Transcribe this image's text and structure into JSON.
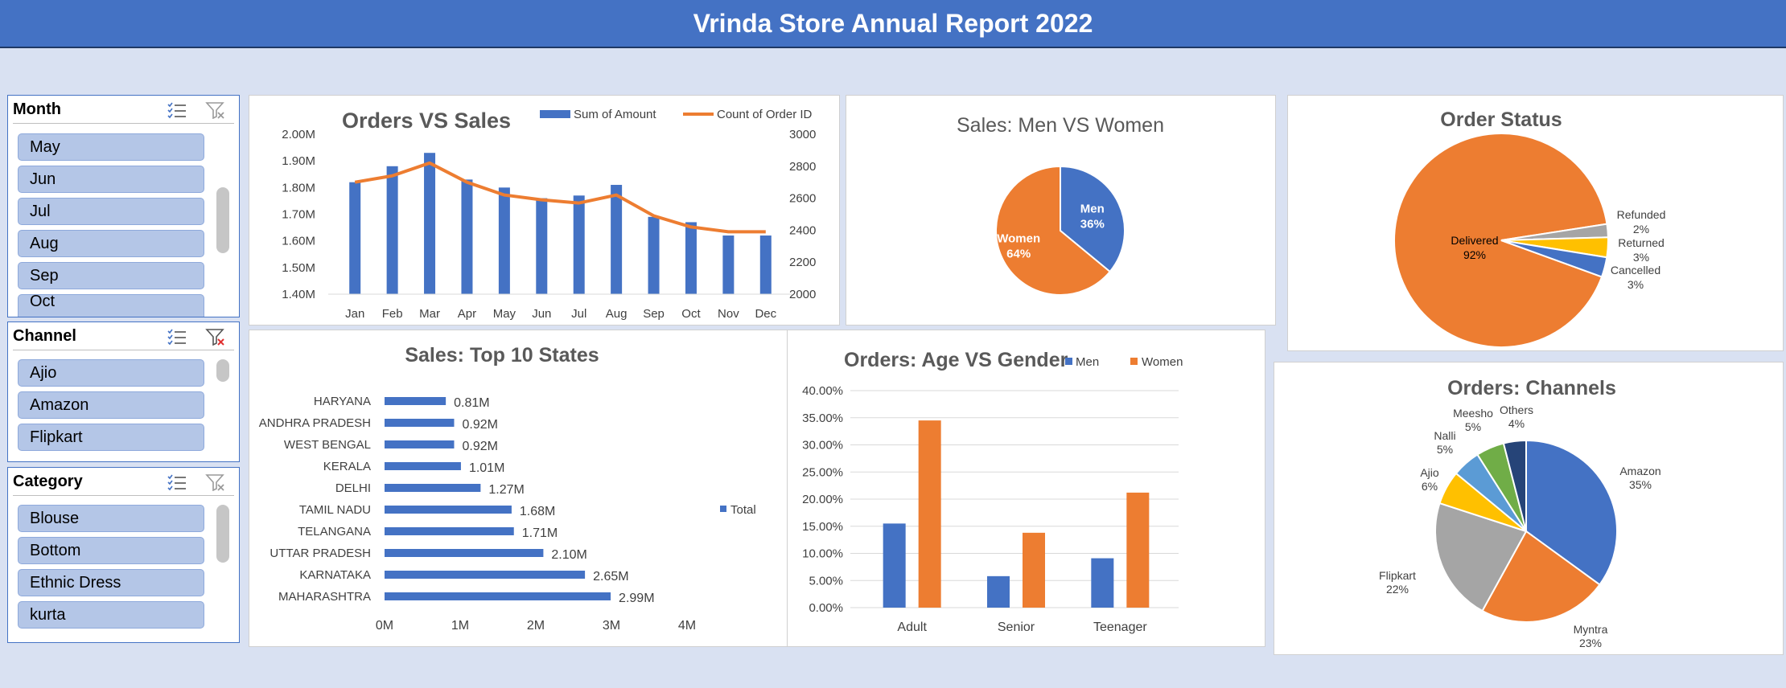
{
  "header": {
    "title": "Vrinda Store Annual Report 2022"
  },
  "colors": {
    "blue": "#4472c4",
    "orange": "#ed7d31",
    "gray": "#a5a5a5",
    "yellow": "#ffc000",
    "lightblue": "#5b9bd5",
    "green": "#70ad47",
    "navy": "#264478"
  },
  "slicers": {
    "month": {
      "title": "Month",
      "items": [
        "May",
        "Jun",
        "Jul",
        "Aug",
        "Sep",
        "Oct"
      ]
    },
    "channel": {
      "title": "Channel",
      "items": [
        "Ajio",
        "Amazon",
        "Flipkart"
      ]
    },
    "category": {
      "title": "Category",
      "items": [
        "Blouse",
        "Bottom",
        "Ethnic Dress",
        "kurta"
      ]
    }
  },
  "chart_data": [
    {
      "id": "orders_vs_sales",
      "type": "bar",
      "title": "Orders VS Sales",
      "categories": [
        "Jan",
        "Feb",
        "Mar",
        "Apr",
        "May",
        "Jun",
        "Jul",
        "Aug",
        "Sep",
        "Oct",
        "Nov",
        "Dec"
      ],
      "series": [
        {
          "name": "Sum of Amount",
          "type": "bar",
          "axis": "left",
          "values": [
            1.82,
            1.88,
            1.93,
            1.83,
            1.8,
            1.76,
            1.77,
            1.81,
            1.69,
            1.67,
            1.62,
            1.62
          ]
        },
        {
          "name": "Count of Order ID",
          "type": "line",
          "axis": "right",
          "values": [
            2700,
            2740,
            2820,
            2700,
            2620,
            2590,
            2570,
            2620,
            2490,
            2420,
            2390,
            2390
          ]
        }
      ],
      "y_left": {
        "ylim": [
          1.4,
          2.0
        ],
        "ticks": [
          "1.40M",
          "1.50M",
          "1.60M",
          "1.70M",
          "1.80M",
          "1.90M",
          "2.00M"
        ]
      },
      "y_right": {
        "ylim": [
          2000,
          3000
        ],
        "ticks": [
          "2000",
          "2200",
          "2400",
          "2600",
          "2800",
          "3000"
        ]
      },
      "legend": "top-right"
    },
    {
      "id": "sales_men_women",
      "type": "pie",
      "title": "Sales: Men VS Women",
      "slices": [
        {
          "label": "Men",
          "value": 36,
          "text": "36%"
        },
        {
          "label": "Women",
          "value": 64,
          "text": "64%"
        }
      ]
    },
    {
      "id": "order_status",
      "type": "pie",
      "title": "Order Status",
      "slices": [
        {
          "label": "Delivered",
          "value": 92,
          "text": "92%"
        },
        {
          "label": "Refunded",
          "value": 2,
          "text": "2%"
        },
        {
          "label": "Returned",
          "value": 3,
          "text": "3%"
        },
        {
          "label": "Cancelled",
          "value": 3,
          "text": "3%"
        }
      ]
    },
    {
      "id": "top_states",
      "type": "bar",
      "orientation": "horizontal",
      "title": "Sales: Top 10 States",
      "categories": [
        "HARYANA",
        "ANDHRA PRADESH",
        "WEST BENGAL",
        "KERALA",
        "DELHI",
        "TAMIL NADU",
        "TELANGANA",
        "UTTAR PRADESH",
        "KARNATAKA",
        "MAHARASHTRA"
      ],
      "values": [
        0.81,
        0.92,
        0.92,
        1.01,
        1.27,
        1.68,
        1.71,
        2.1,
        2.65,
        2.99
      ],
      "data_labels": [
        "0.81M",
        "0.92M",
        "0.92M",
        "1.01M",
        "1.27M",
        "1.68M",
        "1.71M",
        "2.10M",
        "2.65M",
        "2.99M"
      ],
      "xlim": [
        0,
        4
      ],
      "x_ticks": [
        "0M",
        "1M",
        "2M",
        "3M",
        "4M"
      ],
      "legend": {
        "position": "right",
        "label": "Total"
      }
    },
    {
      "id": "age_gender",
      "type": "bar",
      "title": "Orders: Age VS Gender",
      "categories": [
        "Adult",
        "Senior",
        "Teenager"
      ],
      "series": [
        {
          "name": "Men",
          "values": [
            15.5,
            5.8,
            9.1
          ]
        },
        {
          "name": "Women",
          "values": [
            34.5,
            13.8,
            21.2
          ]
        }
      ],
      "ylim": [
        0,
        40
      ],
      "y_ticks": [
        "0.00%",
        "5.00%",
        "10.00%",
        "15.00%",
        "20.00%",
        "25.00%",
        "30.00%",
        "35.00%",
        "40.00%"
      ],
      "legend": "top"
    },
    {
      "id": "channels",
      "type": "pie",
      "title": "Orders: Channels",
      "slices": [
        {
          "label": "Amazon",
          "value": 35,
          "text": "35%"
        },
        {
          "label": "Myntra",
          "value": 23,
          "text": "23%"
        },
        {
          "label": "Flipkart",
          "value": 22,
          "text": "22%"
        },
        {
          "label": "Ajio",
          "value": 6,
          "text": "6%"
        },
        {
          "label": "Nalli",
          "value": 5,
          "text": "5%"
        },
        {
          "label": "Meesho",
          "value": 5,
          "text": "5%"
        },
        {
          "label": "Others",
          "value": 4,
          "text": "4%"
        }
      ]
    }
  ]
}
